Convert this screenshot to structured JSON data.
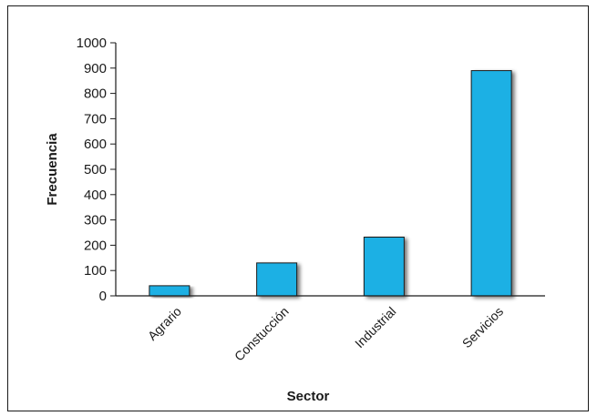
{
  "chart_data": {
    "type": "bar",
    "categories": [
      "Agrario",
      "Constucción",
      "Industrial",
      "Servicios"
    ],
    "values": [
      40,
      130,
      232,
      890
    ],
    "xlabel": "Sector",
    "ylabel": "Frecuencia",
    "ylim": [
      0,
      1000
    ],
    "yticks": [
      0,
      100,
      200,
      300,
      400,
      500,
      600,
      700,
      800,
      900,
      1000
    ],
    "grid": false,
    "legend": "none",
    "colors": {
      "bar": "#1fb0e4",
      "bar_stroke": "#1a1a1a",
      "axis": "#1a1a1a",
      "shadow": "#8a8a8a"
    }
  }
}
